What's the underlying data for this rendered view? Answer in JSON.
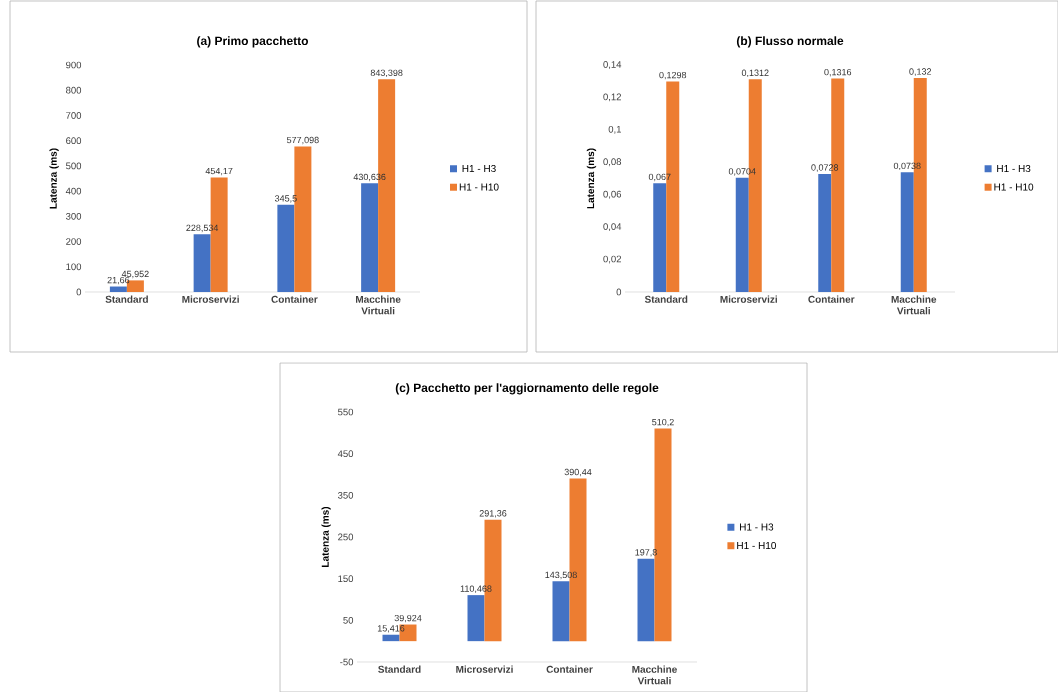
{
  "chart_data": [
    {
      "type": "bar",
      "title": "(a) Primo pacchetto",
      "ylabel": "Latenza (ms)",
      "categories": [
        "Standard",
        "Microservizi",
        "Container",
        "Macchine Virtuali"
      ],
      "ylim": [
        0,
        900
      ],
      "yticks": [
        0,
        100,
        200,
        300,
        400,
        500,
        600,
        700,
        800,
        900
      ],
      "legend": "right",
      "grid": false,
      "series": [
        {
          "name": "H1 - H3",
          "color": "#4472c4",
          "values": [
            21.66,
            228.534,
            345.5,
            430.636
          ],
          "value_labels": [
            "21,66",
            "228,534",
            "345,5",
            "430,636"
          ]
        },
        {
          "name": "H1 - H10",
          "color": "#ed7d31",
          "values": [
            45.952,
            454.17,
            577.098,
            843.398
          ],
          "value_labels": [
            "45,952",
            "454,17",
            "577,098",
            "843,398"
          ]
        }
      ]
    },
    {
      "type": "bar",
      "title": "(b) Flusso normale",
      "ylabel": "Latenza (ms)",
      "categories": [
        "Standard",
        "Microservizi",
        "Container",
        "Macchine Virtuali"
      ],
      "ylim": [
        0,
        0.14
      ],
      "yticks": [
        0,
        {
          "value": 0.02,
          "label": "0,02"
        },
        {
          "value": 0.04,
          "label": "0,04"
        },
        {
          "value": 0.06,
          "label": "0,06"
        },
        {
          "value": 0.08,
          "label": "0,08"
        },
        {
          "value": 0.1,
          "label": "0,1"
        },
        {
          "value": 0.12,
          "label": "0,12"
        },
        {
          "value": 0.14,
          "label": "0,14"
        }
      ],
      "legend": "right",
      "grid": false,
      "series": [
        {
          "name": "H1 - H3",
          "color": "#4472c4",
          "values": [
            0.067,
            0.0704,
            0.0728,
            0.0738
          ],
          "value_labels": [
            "0,067",
            "0,0704",
            "0,0728",
            "0,0738"
          ]
        },
        {
          "name": "H1 - H10",
          "color": "#ed7d31",
          "values": [
            0.1298,
            0.1312,
            0.1316,
            0.132
          ],
          "value_labels": [
            "0,1298",
            "0,1312",
            "0,1316",
            "0,132"
          ]
        }
      ]
    },
    {
      "type": "bar",
      "title": "(c) Pacchetto per l'aggiornamento delle regole",
      "ylabel": "Latenza (ms)",
      "categories": [
        "Standard",
        "Microservizi",
        "Container",
        "Macchine Virtuali"
      ],
      "ylim": [
        -50,
        550
      ],
      "yticks": [
        -50,
        50,
        150,
        250,
        350,
        450,
        550
      ],
      "legend": "right",
      "grid": false,
      "series": [
        {
          "name": "H1 - H3",
          "color": "#4472c4",
          "values": [
            15.416,
            110.468,
            143.508,
            197.8
          ],
          "value_labels": [
            "15,416",
            "110,468",
            "143,508",
            "197,8"
          ]
        },
        {
          "name": "H1 - H10",
          "color": "#ed7d31",
          "values": [
            39.924,
            291.36,
            390.44,
            510.2
          ],
          "value_labels": [
            "39,924",
            "291,36",
            "390,44",
            "510,2"
          ]
        }
      ]
    }
  ]
}
